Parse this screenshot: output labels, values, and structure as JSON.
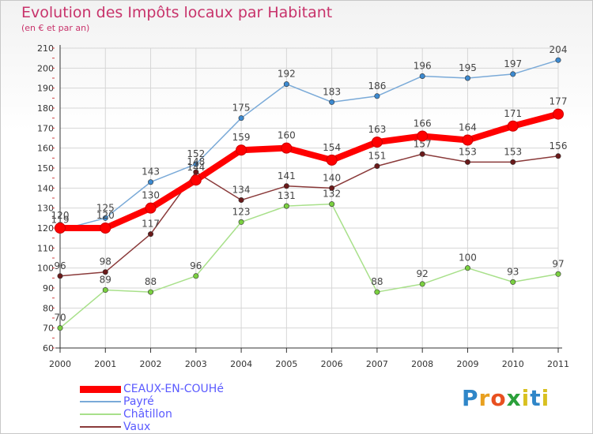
{
  "title": "Evolution des Impôts locaux par Habitant",
  "subtitle": "(en € et par an)",
  "logo_text": "Proxiti",
  "chart_data": {
    "type": "line",
    "title": "Evolution des Impôts locaux par Habitant",
    "subtitle": "(en € et par an)",
    "xlabel": "",
    "ylabel": "",
    "ylim": [
      60,
      210
    ],
    "yticks": [
      60,
      70,
      80,
      90,
      100,
      110,
      120,
      130,
      140,
      150,
      160,
      170,
      180,
      190,
      200,
      210
    ],
    "x": [
      "2000",
      "2001",
      "2002",
      "2003",
      "2004",
      "2005",
      "2006",
      "2007",
      "2008",
      "2009",
      "2010",
      "2011"
    ],
    "series": [
      {
        "name": "Payré",
        "color": "#7aaad8",
        "marker": "#3d8ad0",
        "values": [
          119,
          125,
          143,
          152,
          175,
          192,
          183,
          186,
          196,
          195,
          197,
          204
        ]
      },
      {
        "name": "Châtillon",
        "color": "#a8e08a",
        "marker": "#7ad040",
        "values": [
          70,
          89,
          88,
          96,
          123,
          131,
          132,
          88,
          92,
          100,
          93,
          97
        ]
      },
      {
        "name": "Vaux",
        "color": "#8a3a3a",
        "marker": "#6a1a1a",
        "values": [
          96,
          98,
          117,
          148,
          134,
          141,
          140,
          151,
          157,
          153,
          153,
          156
        ]
      },
      {
        "name": "CEAUX-EN-COUHé",
        "color": "#ff0000",
        "marker": "#ff0000",
        "values": [
          120,
          120,
          130,
          144,
          159,
          160,
          154,
          163,
          166,
          164,
          171,
          177
        ]
      }
    ],
    "legend": [
      {
        "name": "CEAUX-EN-COUHé",
        "color": "#ff0000"
      },
      {
        "name": "Payré",
        "color": "#7aaad8"
      },
      {
        "name": "Châtillon",
        "color": "#a8e08a"
      },
      {
        "name": "Vaux",
        "color": "#8a3a3a"
      }
    ],
    "legend_position": "bottom-left",
    "grid": true
  }
}
